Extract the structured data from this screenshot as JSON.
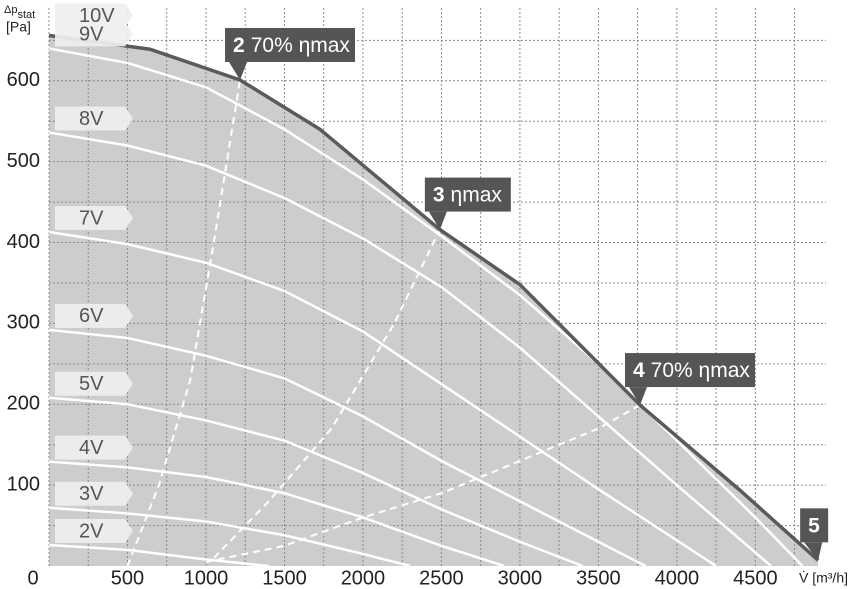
{
  "chart_data": {
    "type": "line",
    "y_label": {
      "symbol": "Δp",
      "sub": "stat",
      "unit": "[Pa]"
    },
    "x_label": "V̇ [m³/h]",
    "xlim": [
      0,
      4950
    ],
    "ylim": [
      0,
      690
    ],
    "xticks": [
      0,
      500,
      1000,
      1500,
      2000,
      2500,
      3000,
      3500,
      4000,
      4500
    ],
    "yticks": [
      100,
      200,
      300,
      400,
      500,
      600
    ],
    "grid": true,
    "minor_grid": true,
    "area_color": "#cdcdcd",
    "series": [
      {
        "name": "10V",
        "color": "#5a5a5a",
        "x": [
          0,
          643,
          1217,
          1726,
          2108,
          2490,
          3000,
          3765,
          4400,
          4900
        ],
        "values": [
          656,
          639,
          601,
          540,
          478,
          416,
          348,
          199,
          94,
          7
        ]
      },
      {
        "name": "9V",
        "color": "#ffffff",
        "x": [
          0,
          500,
          1000,
          1500,
          2000,
          2500,
          3000,
          3500,
          4000,
          4500,
          4800
        ],
        "values": [
          640,
          622,
          592,
          540,
          478,
          408,
          335,
          250,
          155,
          60,
          0
        ]
      },
      {
        "name": "8V",
        "color": "#ffffff",
        "x": [
          0,
          500,
          1000,
          1500,
          2000,
          2500,
          3000,
          3500,
          4000,
          4600
        ],
        "values": [
          536,
          520,
          495,
          455,
          405,
          345,
          270,
          185,
          100,
          0
        ]
      },
      {
        "name": "7V",
        "color": "#ffffff",
        "x": [
          0,
          500,
          1000,
          1500,
          2000,
          2500,
          3000,
          3500,
          4250
        ],
        "values": [
          413,
          398,
          375,
          340,
          290,
          225,
          160,
          95,
          0
        ]
      },
      {
        "name": "6V",
        "color": "#ffffff",
        "x": [
          0,
          500,
          1000,
          1500,
          2000,
          2500,
          3000,
          3500,
          3800
        ],
        "values": [
          292,
          282,
          260,
          232,
          185,
          130,
          80,
          30,
          0
        ]
      },
      {
        "name": "5V",
        "color": "#ffffff",
        "x": [
          0,
          500,
          1000,
          1500,
          2000,
          2500,
          3000,
          3400
        ],
        "values": [
          208,
          200,
          180,
          155,
          115,
          70,
          30,
          0
        ]
      },
      {
        "name": "4V",
        "color": "#ffffff",
        "x": [
          0,
          500,
          1000,
          1500,
          2000,
          2500,
          2900
        ],
        "values": [
          129,
          122,
          110,
          90,
          60,
          25,
          0
        ]
      },
      {
        "name": "3V",
        "color": "#ffffff",
        "x": [
          0,
          500,
          1000,
          1500,
          2000,
          2300
        ],
        "values": [
          72,
          65,
          55,
          38,
          15,
          0
        ]
      },
      {
        "name": "2V",
        "color": "#ffffff",
        "x": [
          0,
          500,
          1000,
          1400
        ],
        "values": [
          26,
          20,
          8,
          0
        ]
      }
    ],
    "efficiency_lines": [
      {
        "color": "#ffffff",
        "x": [
          500,
          700,
          900,
          1050,
          1217
        ],
        "values": [
          0,
          100,
          230,
          400,
          601
        ]
      },
      {
        "color": "#ffffff",
        "x": [
          1050,
          1400,
          1800,
          2200,
          2490
        ],
        "values": [
          10,
          80,
          170,
          300,
          416
        ]
      },
      {
        "color": "#ffffff",
        "x": [
          1000,
          1500,
          2000,
          2500,
          3000,
          3500,
          3765
        ],
        "values": [
          5,
          25,
          60,
          90,
          130,
          170,
          199
        ]
      }
    ],
    "annotations": [
      {
        "number": "2",
        "text": "70% ηmax",
        "x": 1217,
        "y": 601
      },
      {
        "number": "3",
        "text": "ηmax",
        "x": 2490,
        "y": 416
      },
      {
        "number": "4",
        "text": "70% ηmax",
        "x": 3765,
        "y": 199
      },
      {
        "number": "5",
        "x": 4900,
        "y": 7
      }
    ]
  }
}
